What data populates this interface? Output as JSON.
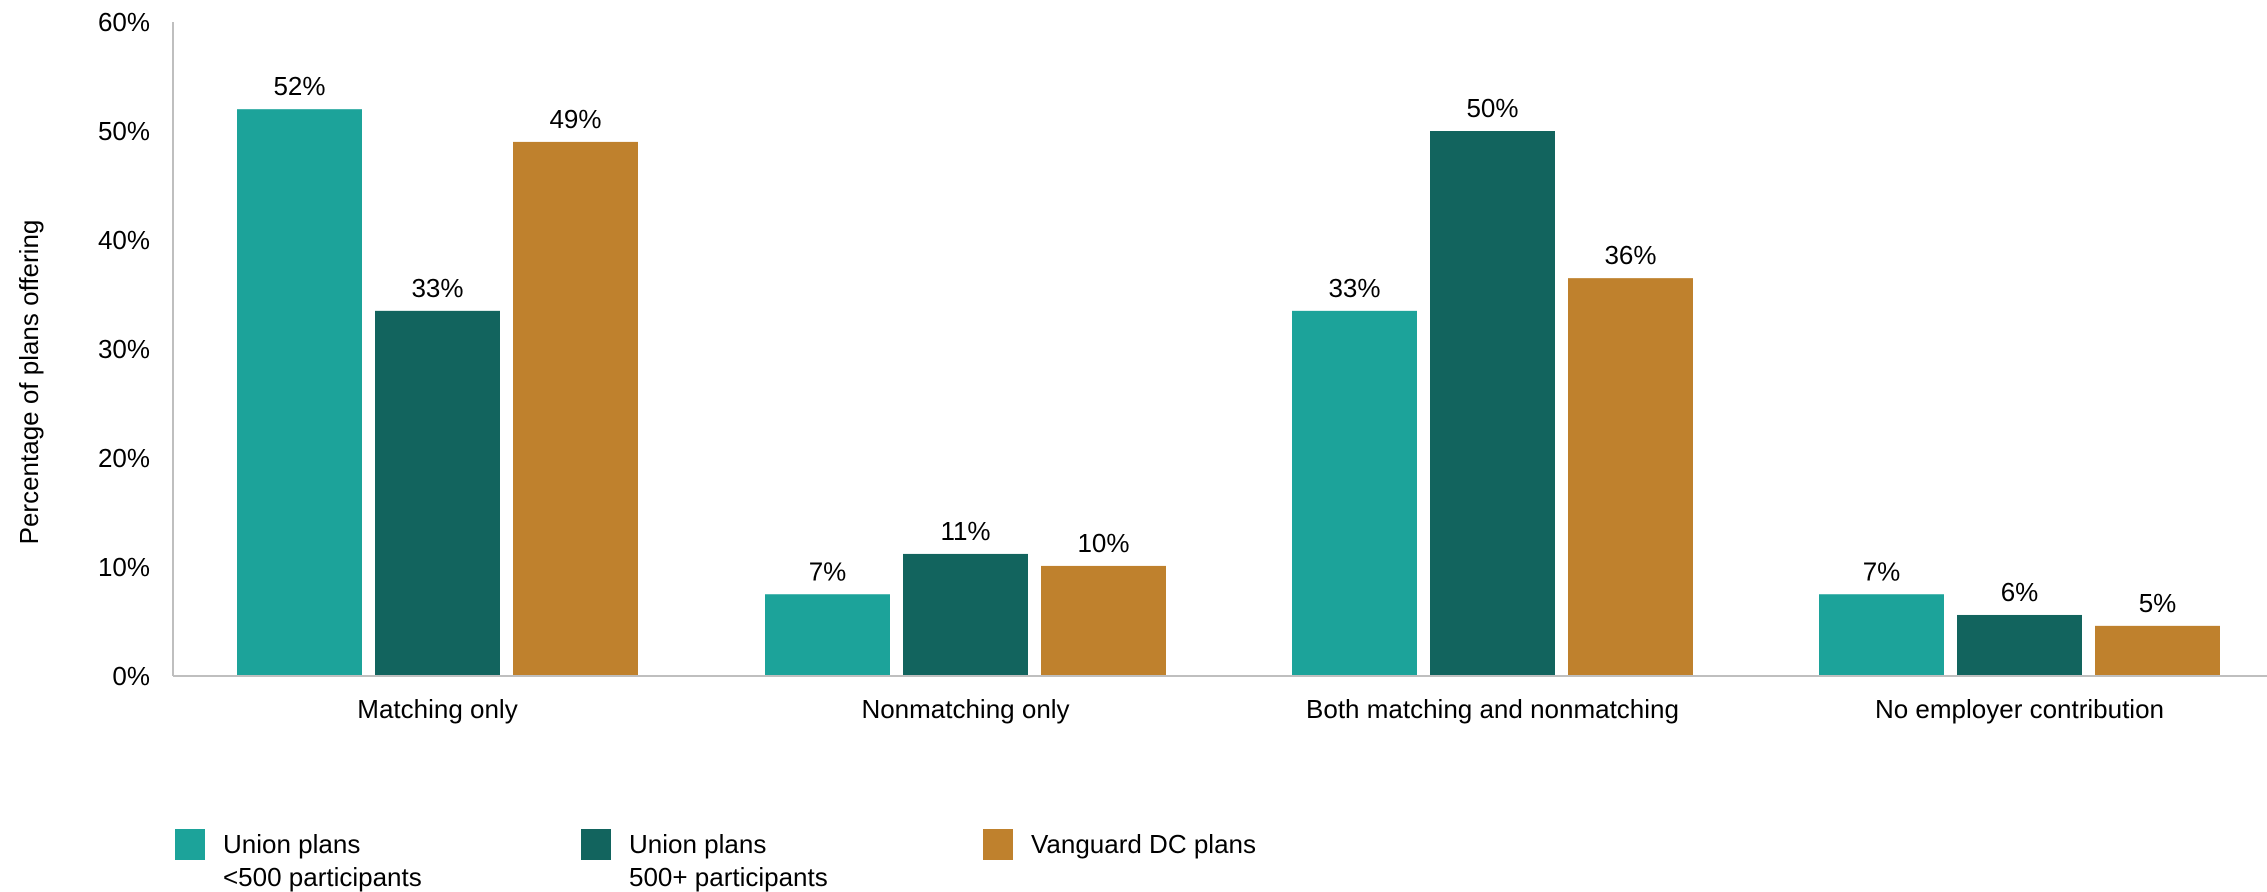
{
  "chart_data": {
    "type": "bar",
    "title": "",
    "xlabel": "",
    "ylabel": "Percentage of plans offering",
    "ylim": [
      0,
      60
    ],
    "yticks": [
      0,
      10,
      20,
      30,
      40,
      50,
      60
    ],
    "ytick_labels": [
      "0%",
      "10%",
      "20%",
      "30%",
      "40%",
      "50%",
      "60%"
    ],
    "grid": false,
    "legend_position": "bottom-left",
    "categories": [
      "Matching only",
      "Nonmatching only",
      "Both matching and nonmatching",
      "No employer contribution"
    ],
    "series": [
      {
        "name_lines": [
          "Union plans",
          "<500 participants"
        ],
        "color": "#1ca39a",
        "values": [
          52,
          7.5,
          33.5,
          7.5
        ],
        "labels": [
          "52%",
          "7%",
          "33%",
          "7%"
        ]
      },
      {
        "name_lines": [
          "Union plans",
          "500+ participants"
        ],
        "color": "#12645e",
        "values": [
          33.5,
          11.2,
          50,
          5.6
        ],
        "labels": [
          "33%",
          "11%",
          "50%",
          "6%"
        ]
      },
      {
        "name_lines": [
          "Vanguard DC plans"
        ],
        "color": "#bf812d",
        "values": [
          49,
          10.1,
          36.5,
          4.6
        ],
        "labels": [
          "49%",
          "10%",
          "36%",
          "5%"
        ]
      }
    ]
  }
}
